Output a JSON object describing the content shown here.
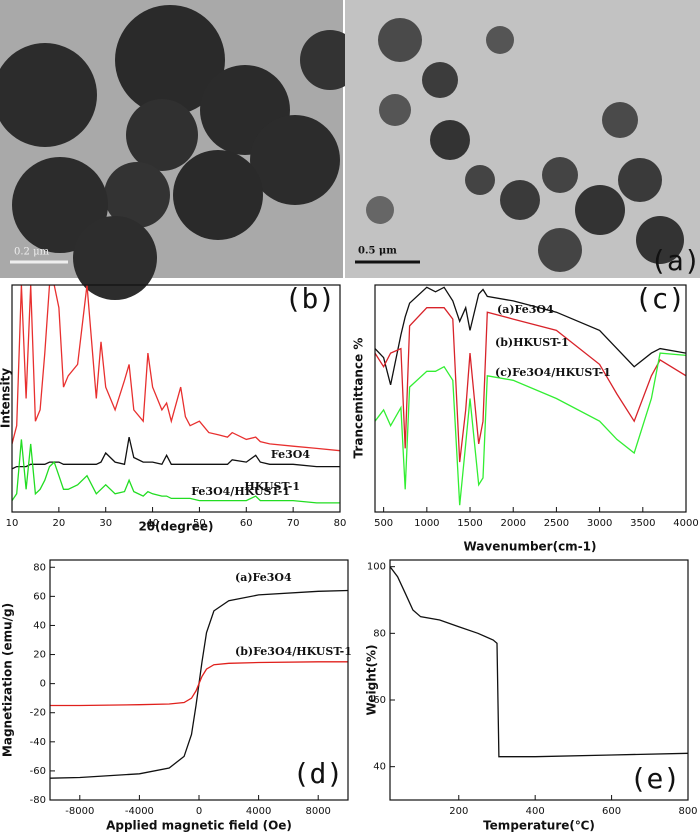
{
  "micrographs": {
    "label": "(a)",
    "scale_bars": [
      "0.2 μm",
      "0.5 μm"
    ]
  },
  "chart_data": [
    {
      "type": "line",
      "panel_label": "(b)",
      "xlabel": "2θ(degree)",
      "ylabel": "Intensity",
      "x": [
        10,
        11,
        12,
        13,
        14,
        15,
        16,
        17,
        18,
        19,
        20,
        21,
        22,
        24,
        26,
        28,
        29,
        30,
        32,
        34,
        35,
        36,
        38,
        39,
        40,
        42,
        43,
        44,
        46,
        47,
        48,
        50,
        52,
        54,
        56,
        57,
        60,
        62,
        63,
        65,
        70,
        75,
        80
      ],
      "series": [
        {
          "name": "HKUST-1",
          "color": "#e8302f",
          "values": [
            30,
            38,
            100,
            50,
            100,
            40,
            45,
            70,
            100,
            100,
            90,
            55,
            60,
            65,
            100,
            50,
            75,
            55,
            45,
            58,
            65,
            45,
            40,
            70,
            55,
            45,
            48,
            40,
            55,
            42,
            38,
            40,
            35,
            34,
            33,
            35,
            32,
            33,
            31,
            30,
            29,
            28,
            27
          ]
        },
        {
          "name": "Fe3O4",
          "color": "#111111",
          "values": [
            19,
            20,
            20,
            20,
            21,
            21,
            21,
            21,
            22,
            22,
            22,
            21,
            21,
            21,
            21,
            21,
            22,
            26,
            22,
            21,
            33,
            24,
            22,
            22,
            22,
            21,
            25,
            21,
            21,
            21,
            21,
            21,
            21,
            21,
            21,
            23,
            22,
            25,
            22,
            21,
            21,
            20,
            20
          ]
        },
        {
          "name": "Fe3O4/HKUST-1",
          "color": "#22dd22",
          "values": [
            5,
            8,
            32,
            10,
            30,
            8,
            10,
            14,
            20,
            22,
            16,
            10,
            10,
            12,
            16,
            8,
            10,
            12,
            8,
            9,
            14,
            9,
            7,
            9,
            8,
            7,
            7,
            6,
            6,
            6,
            6,
            5,
            5,
            5,
            5,
            5,
            5,
            7,
            5,
            5,
            5,
            4,
            4
          ]
        }
      ],
      "xlim": [
        10,
        80
      ],
      "ylim": [
        0,
        100
      ],
      "xticks": [
        10,
        20,
        30,
        40,
        50,
        60,
        70,
        80
      ]
    },
    {
      "type": "line",
      "panel_label": "(c)",
      "xlabel": "Wavenumber(cm-1)",
      "ylabel": "Trancemittance %",
      "x": [
        400,
        500,
        580,
        700,
        750,
        800,
        1000,
        1100,
        1200,
        1300,
        1380,
        1450,
        1500,
        1600,
        1650,
        1700,
        2000,
        2500,
        3000,
        3200,
        3400,
        3600,
        3700,
        4000
      ],
      "series": [
        {
          "name": "(a)Fe3O4",
          "color": "#111111",
          "values": [
            72,
            68,
            56,
            78,
            86,
            92,
            99,
            97,
            99,
            93,
            84,
            90,
            80,
            96,
            98,
            95,
            93,
            88,
            80,
            72,
            64,
            70,
            72,
            70
          ]
        },
        {
          "name": "(b)HKUST-1",
          "color": "#d8232a",
          "values": [
            70,
            64,
            70,
            72,
            28,
            82,
            90,
            90,
            90,
            85,
            22,
            45,
            70,
            30,
            40,
            88,
            85,
            80,
            65,
            52,
            40,
            60,
            67,
            60
          ]
        },
        {
          "name": "(c)Fe3O4/HKUST-1",
          "color": "#33ee33",
          "values": [
            40,
            45,
            38,
            46,
            10,
            55,
            62,
            62,
            64,
            58,
            3,
            30,
            50,
            12,
            15,
            60,
            58,
            50,
            40,
            32,
            26,
            50,
            70,
            69
          ]
        }
      ],
      "xlim": [
        400,
        4000
      ],
      "ylim": [
        0,
        100
      ],
      "xticks": [
        500,
        1000,
        1500,
        2000,
        2500,
        3000,
        3500,
        4000
      ]
    },
    {
      "type": "line",
      "panel_label": "(d)",
      "xlabel": "Applied magnetic field (Oe)",
      "ylabel": "Magnetization (emu/g)",
      "x": [
        -10000,
        -8000,
        -4000,
        -2000,
        -1000,
        -500,
        -200,
        0,
        200,
        500,
        1000,
        2000,
        4000,
        8000,
        10000
      ],
      "series": [
        {
          "name": "(a)Fe3O4",
          "color": "#111111",
          "values": [
            -65,
            -64.5,
            -62,
            -58,
            -50,
            -35,
            -15,
            0,
            15,
            35,
            50,
            57,
            61,
            63.5,
            64
          ]
        },
        {
          "name": "(b)Fe3O4/HKUST-1",
          "color": "#e0201c",
          "values": [
            -15,
            -15,
            -14.5,
            -14,
            -13,
            -10,
            -5,
            0,
            5,
            10,
            13,
            14,
            14.5,
            15,
            15
          ]
        }
      ],
      "xlim": [
        -10000,
        10000
      ],
      "ylim": [
        -80,
        85
      ],
      "xticks": [
        -8000,
        -4000,
        0,
        4000,
        8000
      ],
      "yticks": [
        -80,
        -60,
        -40,
        -20,
        0,
        20,
        40,
        60,
        80
      ]
    },
    {
      "type": "line",
      "panel_label": "(e)",
      "xlabel": "Temperature(℃)",
      "ylabel": "Weight(%)",
      "x": [
        20,
        40,
        60,
        80,
        100,
        150,
        200,
        250,
        290,
        300,
        305,
        310,
        400,
        600,
        800
      ],
      "series": [
        {
          "color": "#111111",
          "values": [
            100,
            97,
            92,
            87,
            85,
            84,
            82,
            80,
            78,
            77,
            43,
            43,
            43,
            43.5,
            44
          ]
        }
      ],
      "xlim": [
        20,
        800
      ],
      "ylim": [
        30,
        102
      ],
      "xticks": [
        200,
        400,
        600,
        800
      ],
      "yticks": [
        40,
        60,
        80,
        100
      ]
    }
  ]
}
